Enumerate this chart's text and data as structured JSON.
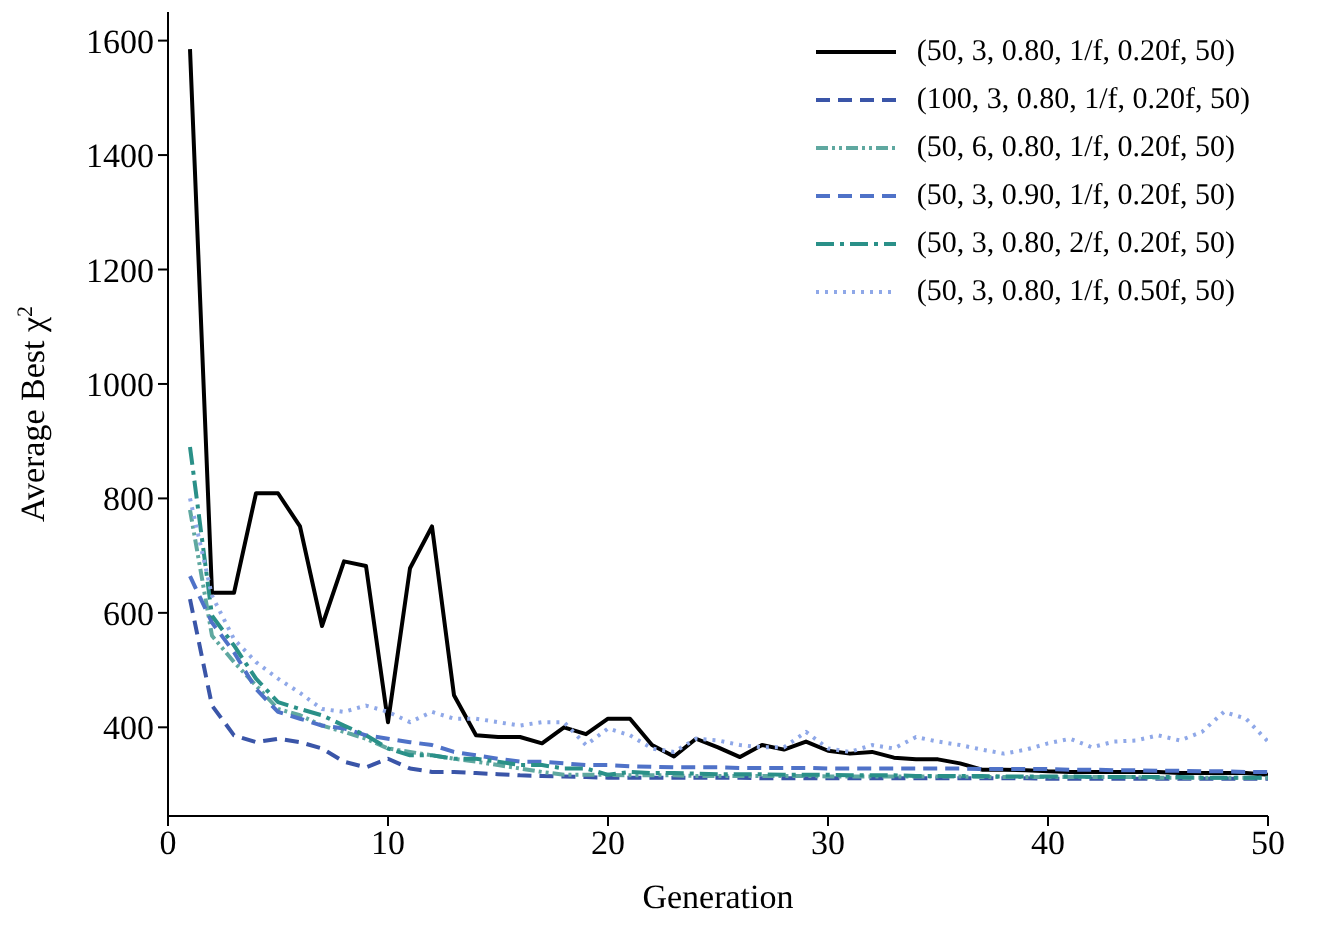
{
  "chart_data": {
    "type": "line",
    "xlabel": "Generation",
    "ylabel": "Average Best χ$^{2}$",
    "x": [
      1,
      2,
      3,
      4,
      5,
      6,
      7,
      8,
      9,
      10,
      11,
      12,
      13,
      14,
      15,
      16,
      17,
      18,
      19,
      20,
      21,
      22,
      23,
      24,
      25,
      26,
      27,
      28,
      29,
      30,
      31,
      32,
      33,
      34,
      35,
      36,
      37,
      38,
      39,
      40,
      41,
      42,
      43,
      44,
      45,
      46,
      47,
      48,
      49,
      50
    ],
    "xlim": [
      0,
      50
    ],
    "xticks": [
      0,
      10,
      20,
      30,
      40,
      50
    ],
    "ylim": [
      245,
      1650
    ],
    "yticks": [
      400,
      600,
      800,
      1000,
      1200,
      1400,
      1600
    ],
    "legend": "top right",
    "marker": "none",
    "series": [
      {
        "name": "(50, 3, 0.80, 1/f, 0.20f, 50)",
        "color": "#000000",
        "line_style": "solid",
        "values": [
          1585,
          635,
          635,
          809,
          809,
          751,
          577,
          690,
          682,
          409,
          678,
          751,
          456,
          386,
          383,
          383,
          372,
          400,
          388,
          415,
          415,
          369,
          349,
          380,
          365,
          348,
          369,
          361,
          375,
          359,
          354,
          357,
          347,
          344,
          344,
          337,
          326,
          326,
          325,
          323,
          322,
          322,
          322,
          322,
          322,
          320,
          320,
          320,
          320,
          317
        ]
      },
      {
        "name": "(100, 3, 0.80, 1/f, 0.20f, 50)",
        "color": "#3a55a8",
        "line_style": "dashed",
        "values": [
          624,
          438,
          386,
          374,
          380,
          374,
          363,
          340,
          330,
          345,
          328,
          322,
          322,
          320,
          318,
          316,
          315,
          314,
          313,
          312,
          312,
          312,
          312,
          312,
          312,
          312,
          311,
          311,
          311,
          311,
          311,
          311,
          311,
          311,
          311,
          311,
          311,
          311,
          311,
          310,
          310,
          310,
          310,
          310,
          310,
          310,
          310,
          310,
          310,
          310
        ]
      },
      {
        "name": "(50, 6, 0.80, 1/f, 0.20f, 50)",
        "color": "#5fa8a0",
        "line_style": "dashdotdot",
        "values": [
          780,
          560,
          514,
          473,
          432,
          421,
          403,
          392,
          380,
          363,
          357,
          351,
          345,
          340,
          334,
          328,
          322,
          317,
          317,
          317,
          316,
          316,
          316,
          315,
          315,
          315,
          315,
          315,
          315,
          314,
          314,
          314,
          314,
          314,
          314,
          314,
          313,
          313,
          313,
          313,
          313,
          313,
          313,
          313,
          312,
          312,
          312,
          312,
          312,
          312
        ]
      },
      {
        "name": "(50, 3, 0.90, 1/f, 0.20f, 50)",
        "color": "#4f72c8",
        "line_style": "dashed",
        "values": [
          664,
          583,
          531,
          467,
          427,
          415,
          403,
          398,
          386,
          380,
          374,
          369,
          357,
          351,
          345,
          340,
          340,
          337,
          334,
          334,
          332,
          331,
          330,
          330,
          330,
          329,
          329,
          329,
          329,
          328,
          328,
          328,
          328,
          328,
          328,
          328,
          327,
          327,
          327,
          327,
          326,
          326,
          325,
          325,
          324,
          324,
          323,
          323,
          322,
          322
        ]
      },
      {
        "name": "(50, 3, 0.80, 2/f, 0.20f, 50)",
        "color": "#2a9088",
        "line_style": "dashdot",
        "values": [
          890,
          595,
          543,
          485,
          444,
          432,
          421,
          403,
          386,
          363,
          351,
          351,
          345,
          345,
          340,
          334,
          334,
          328,
          328,
          317,
          322,
          320,
          320,
          319,
          318,
          318,
          318,
          317,
          317,
          317,
          316,
          316,
          316,
          315,
          315,
          315,
          315,
          314,
          314,
          314,
          314,
          313,
          313,
          313,
          313,
          313,
          312,
          312,
          312,
          312
        ]
      },
      {
        "name": "(50, 3, 0.80, 1/f, 0.50f, 50)",
        "color": "#8fa8e8",
        "line_style": "dotted",
        "values": [
          800,
          630,
          554,
          514,
          485,
          460,
          432,
          427,
          438,
          427,
          409,
          427,
          415,
          415,
          409,
          403,
          409,
          409,
          369,
          398,
          386,
          363,
          357,
          380,
          377,
          369,
          365,
          365,
          392,
          363,
          357,
          369,
          363,
          383,
          375,
          369,
          361,
          354,
          361,
          372,
          380,
          365,
          375,
          377,
          386,
          377,
          392,
          427,
          415,
          375
        ]
      }
    ]
  }
}
